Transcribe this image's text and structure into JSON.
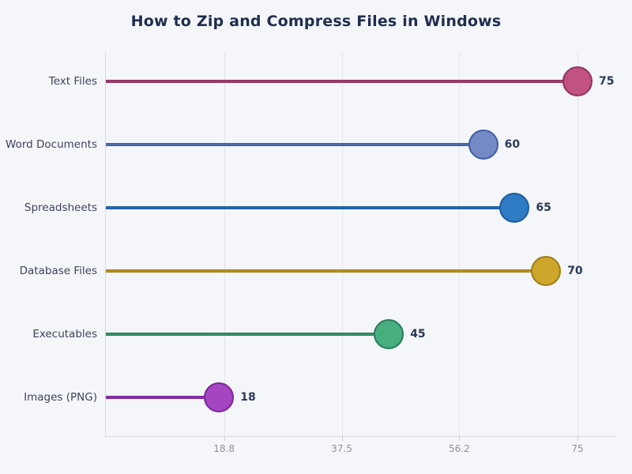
{
  "page": {
    "background": "#f4f6fa"
  },
  "title": "How to Zip and Compress Files in Windows",
  "chart_data": {
    "type": "lollipop",
    "orientation": "horizontal",
    "title": "How to Zip and Compress Files in Windows",
    "categories": [
      "Text Files",
      "Word Documents",
      "Spreadsheets",
      "Database Files",
      "Executables",
      "Images (PNG)"
    ],
    "values": [
      75,
      60,
      65,
      70,
      45,
      18
    ],
    "value_labels": [
      "75",
      "60",
      "65",
      "70",
      "45",
      "18"
    ],
    "series_colors": [
      {
        "fill": "#c2527f",
        "stroke": "#8e3361",
        "stem": "#a43a6a"
      },
      {
        "fill": "#7589c4",
        "stroke": "#3d5fa6",
        "stem": "#4a69ad"
      },
      {
        "fill": "#2f7bc3",
        "stroke": "#1b5c9e",
        "stem": "#2268ae"
      },
      {
        "fill": "#cda62b",
        "stroke": "#9d7e16",
        "stem": "#b6921d"
      },
      {
        "fill": "#47ae80",
        "stroke": "#2b7c59",
        "stem": "#31906a"
      },
      {
        "fill": "#a545c2",
        "stroke": "#7c2798",
        "stem": "#8c2fa8"
      }
    ],
    "xlabel": "",
    "ylabel": "",
    "xticks": [
      18.8,
      37.5,
      56.2,
      75
    ],
    "xtick_labels": [
      "18.8",
      "37.5",
      "56.2",
      "75"
    ],
    "xlim": [
      0,
      81.3
    ],
    "grid": "vertical",
    "legend": "none",
    "style": {
      "title_color": "#1f2d4e",
      "category_label_color": "#3d4458",
      "value_label_color": "#2b3955",
      "tick_label_color": "#8d929e",
      "axis_color": "#d9dce4",
      "grid_color": "#e2e5ec"
    }
  }
}
